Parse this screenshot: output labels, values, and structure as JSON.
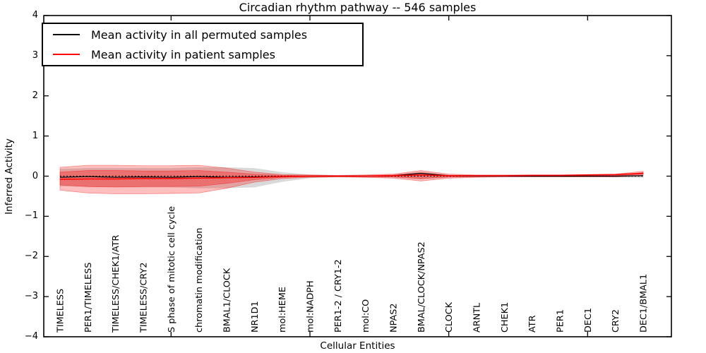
{
  "chart_data": {
    "type": "line",
    "title": "Circadian rhythm pathway -- 546 samples",
    "xlabel": "Cellular Entities",
    "ylabel": "Inferred Activity",
    "ylim": [
      -4,
      4
    ],
    "grid": false,
    "zero_line_style": "dotted",
    "legend_position": "upper left",
    "yticks": [
      {
        "value": 4,
        "label": "4"
      },
      {
        "value": 3,
        "label": "3"
      },
      {
        "value": 2,
        "label": "2"
      },
      {
        "value": 1,
        "label": "1"
      },
      {
        "value": 0,
        "label": "0"
      },
      {
        "value": -1,
        "label": "−1"
      },
      {
        "value": -2,
        "label": "−2"
      },
      {
        "value": -3,
        "label": "−3"
      },
      {
        "value": -4,
        "label": "−4"
      }
    ],
    "xtick_major_indices": [
      4,
      9,
      14,
      19
    ],
    "categories": [
      "TIMELESS",
      "PER1/TIMELESS",
      "TIMELESS/CHEK1/ATR",
      "TIMELESS/CRY2",
      "S phase of mitotic cell cycle",
      "chromatin modification",
      "BMAL1/CLOCK",
      "NR1D1",
      "mol:HEME",
      "mol:NADPH",
      "PER1-2 / CRY1-2",
      "mol:CO",
      "NPAS2",
      "BMAL/CLOCK/NPAS2",
      "CLOCK",
      "ARNTL",
      "CHEK1",
      "ATR",
      "PER1",
      "DEC1",
      "CRY2",
      "DEC1/BMAL1"
    ],
    "series": [
      {
        "name": "Mean activity in all permuted samples",
        "color": "#000000",
        "width": 1.2,
        "values": [
          -0.03,
          -0.01,
          -0.03,
          -0.02,
          -0.03,
          -0.01,
          -0.03,
          -0.02,
          -0.01,
          0,
          0,
          0,
          0.01,
          0.07,
          0.01,
          0,
          0,
          0,
          0,
          0,
          0,
          0.01
        ]
      },
      {
        "name": "Mean activity in patient samples",
        "color": "#ff0000",
        "width": 1.5,
        "values": [
          -0.08,
          -0.07,
          -0.07,
          -0.06,
          -0.06,
          -0.05,
          -0.04,
          -0.03,
          -0.01,
          0,
          0,
          0,
          0.01,
          0.03,
          0.01,
          0.01,
          0.01,
          0.02,
          0.02,
          0.03,
          0.04,
          0.07
        ]
      }
    ],
    "bands": [
      {
        "name": "permuted-samples-band",
        "color": "#000000",
        "opacity": 0.15,
        "stroke_opacity": 0,
        "top": [
          0.18,
          0.2,
          0.2,
          0.2,
          0.2,
          0.22,
          0.22,
          0.2,
          0.1,
          0.04,
          0.02,
          0.03,
          0.04,
          0.11,
          0.04,
          0.02,
          0.02,
          0.02,
          0.02,
          0.02,
          0.03,
          0.06
        ],
        "bottom": [
          -0.25,
          -0.27,
          -0.28,
          -0.28,
          -0.28,
          -0.3,
          -0.3,
          -0.28,
          -0.14,
          -0.05,
          -0.02,
          -0.03,
          -0.04,
          -0.08,
          -0.04,
          -0.02,
          -0.02,
          -0.02,
          -0.02,
          -0.02,
          -0.03,
          -0.04
        ]
      },
      {
        "name": "patient-samples-outer-band",
        "color": "#ff0000",
        "opacity": 0.25,
        "stroke_opacity": 0.4,
        "top": [
          0.22,
          0.27,
          0.27,
          0.26,
          0.26,
          0.27,
          0.2,
          0.1,
          0.04,
          0.03,
          0.02,
          0.03,
          0.05,
          0.14,
          0.05,
          0.03,
          0.03,
          0.03,
          0.03,
          0.04,
          0.05,
          0.12
        ],
        "bottom": [
          -0.35,
          -0.42,
          -0.44,
          -0.44,
          -0.43,
          -0.42,
          -0.3,
          -0.15,
          -0.06,
          -0.03,
          -0.02,
          -0.03,
          -0.05,
          -0.12,
          -0.05,
          -0.03,
          -0.02,
          -0.02,
          -0.02,
          -0.02,
          -0.02,
          0.02
        ]
      },
      {
        "name": "patient-samples-inner-band",
        "color": "#ff0000",
        "opacity": 0.3,
        "stroke_opacity": 0.4,
        "top": [
          0.1,
          0.14,
          0.14,
          0.13,
          0.13,
          0.14,
          0.1,
          0.05,
          0.02,
          0.01,
          0.01,
          0.01,
          0.03,
          0.08,
          0.02,
          0.01,
          0.01,
          0.02,
          0.02,
          0.02,
          0.03,
          0.09
        ],
        "bottom": [
          -0.22,
          -0.26,
          -0.27,
          -0.26,
          -0.26,
          -0.25,
          -0.18,
          -0.09,
          -0.03,
          -0.01,
          -0.01,
          -0.01,
          -0.02,
          -0.06,
          -0.02,
          -0.01,
          0,
          0,
          0,
          0.01,
          0.01,
          0.05
        ]
      }
    ]
  }
}
